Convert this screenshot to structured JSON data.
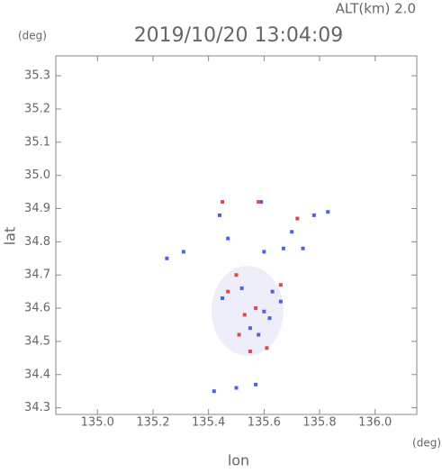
{
  "chart_data": {
    "type": "scatter",
    "title": "2019/10/20 13:04:09",
    "subtitle": "ALT(km) 2.0",
    "y_unit": "(deg)",
    "x_unit": "(deg)",
    "x_label": "lon",
    "y_label": "lat",
    "xlim": [
      134.85,
      136.15
    ],
    "ylim": [
      34.28,
      35.36
    ],
    "xticks": [
      {
        "value": 135,
        "label": "135.0"
      },
      135.2,
      135.4,
      135.6,
      135.8,
      {
        "value": 136,
        "label": "136.0"
      }
    ],
    "yticks": [
      34.3,
      34.4,
      34.5,
      34.6,
      34.7,
      34.8,
      34.9,
      {
        "value": 35,
        "label": "35.0"
      },
      35.1,
      35.2,
      35.3
    ],
    "series": [
      {
        "color": "#5060e8",
        "x": [
          135.25,
          135.31,
          135.44,
          135.59,
          135.83,
          135.78,
          135.67,
          135.74,
          135.6,
          135.45,
          135.52,
          135.63,
          135.6,
          135.66,
          135.55,
          135.58,
          135.62,
          135.42,
          135.5,
          135.57,
          135.47,
          135.7
        ],
        "values": [
          34.75,
          34.77,
          34.88,
          34.92,
          34.89,
          34.88,
          34.78,
          34.78,
          34.77,
          34.63,
          34.66,
          34.65,
          34.59,
          34.62,
          34.54,
          34.52,
          34.57,
          34.35,
          34.36,
          34.37,
          34.81,
          34.83
        ]
      },
      {
        "color": "#e04848",
        "x": [
          135.45,
          135.58,
          135.72,
          135.47,
          135.57,
          135.55,
          135.53,
          135.61,
          135.5,
          135.66,
          135.51
        ],
        "values": [
          34.92,
          34.92,
          34.87,
          34.65,
          34.6,
          34.47,
          34.58,
          34.48,
          34.7,
          34.67,
          34.52
        ]
      }
    ]
  }
}
